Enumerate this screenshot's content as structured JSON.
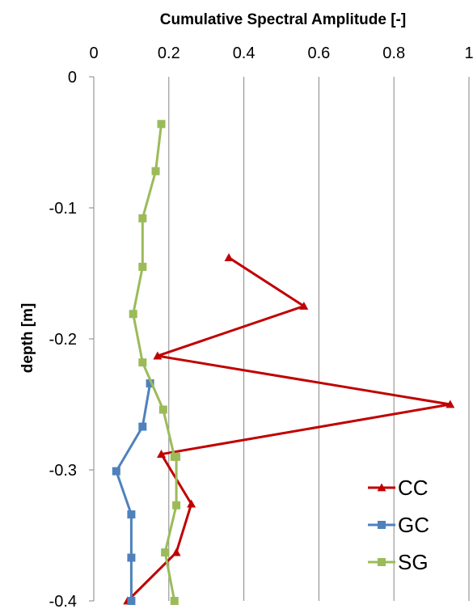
{
  "chart_data": {
    "type": "line",
    "title": "Cumulative Spectral Amplitude [-]",
    "xlabel": "",
    "ylabel": "depth [m]",
    "xlim": [
      0,
      1
    ],
    "ylim": [
      -0.4,
      0
    ],
    "x_ticks": [
      "0",
      "0.2",
      "0.4",
      "0.6",
      "0.8",
      "1"
    ],
    "y_ticks": [
      "0",
      "-0.1",
      "-0.2",
      "-0.3",
      "-0.4"
    ],
    "x_axis_position": "top",
    "grid": "vertical",
    "legend_position": "bottom-right",
    "series": [
      {
        "name": "CC",
        "color": "#c00000",
        "marker": "triangle",
        "x": [
          0.36,
          0.56,
          0.17,
          0.95,
          0.18,
          0.26,
          0.22,
          0.09
        ],
        "y": [
          -0.138,
          -0.175,
          -0.213,
          -0.25,
          -0.288,
          -0.326,
          -0.363,
          -0.4
        ]
      },
      {
        "name": "GC",
        "color": "#4f81bd",
        "marker": "square",
        "x": [
          0.15,
          0.13,
          0.06,
          0.1,
          0.1,
          0.1
        ],
        "y": [
          -0.234,
          -0.267,
          -0.301,
          -0.334,
          -0.367,
          -0.4
        ]
      },
      {
        "name": "SG",
        "color": "#9bbb59",
        "marker": "square",
        "x": [
          0.18,
          0.165,
          0.13,
          0.13,
          0.105,
          0.13,
          0.185,
          0.215,
          0.22,
          0.22,
          0.19,
          0.215
        ],
        "y": [
          -0.036,
          -0.072,
          -0.108,
          -0.145,
          -0.181,
          -0.218,
          -0.254,
          -0.29,
          -0.29,
          -0.327,
          -0.363,
          -0.4
        ]
      }
    ]
  }
}
